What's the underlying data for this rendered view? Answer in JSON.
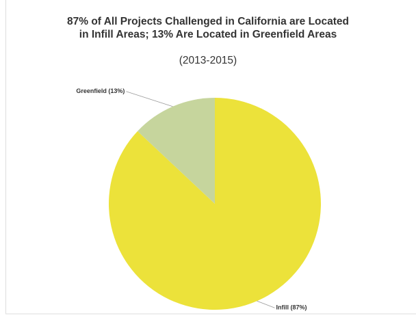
{
  "chart_data": {
    "type": "pie",
    "title": "87% of  All Projects Challenged in California are Located in Infill Areas; 13% Are Located in Greenfield Areas",
    "subtitle": "(2013-2015)",
    "values": [
      87,
      13
    ],
    "value_labels": [
      "Infill (87%)",
      "Greenfield (13%)"
    ],
    "colors": [
      "#ece23a",
      "#c6d59d"
    ]
  }
}
